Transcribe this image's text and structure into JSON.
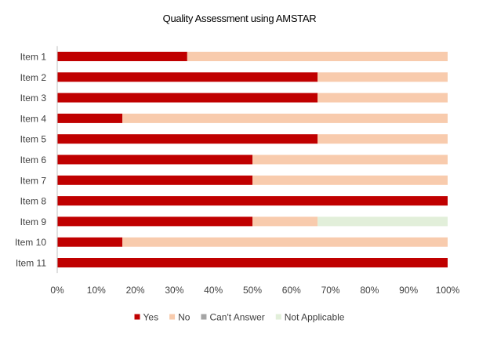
{
  "chart_data": {
    "type": "bar",
    "orientation": "horizontal",
    "stacked": "percent",
    "title": "Quality Assessment using AMSTAR",
    "categories": [
      "Item 1",
      "Item 2",
      "Item 3",
      "Item 4",
      "Item 5",
      "Item 6",
      "Item 7",
      "Item 8",
      "Item 9",
      "Item 10",
      "Item 11"
    ],
    "series": [
      {
        "name": "Yes",
        "color": "#c00000",
        "values": [
          33.3,
          66.7,
          66.7,
          16.7,
          66.7,
          50,
          50,
          100,
          50,
          16.7,
          100
        ]
      },
      {
        "name": "No",
        "color": "#f8cbad",
        "values": [
          66.7,
          33.3,
          33.3,
          83.3,
          33.3,
          50,
          50,
          0,
          16.7,
          83.3,
          0
        ]
      },
      {
        "name": "Can't Answer",
        "color": "#a5a5a5",
        "values": [
          0,
          0,
          0,
          0,
          0,
          0,
          0,
          0,
          0,
          0,
          0
        ]
      },
      {
        "name": "Not Applicable",
        "color": "#e2efda",
        "values": [
          0,
          0,
          0,
          0,
          0,
          0,
          0,
          0,
          33.3,
          0,
          0
        ]
      }
    ],
    "xlim": [
      0,
      100
    ],
    "xticks": [
      "0%",
      "10%",
      "20%",
      "30%",
      "40%",
      "50%",
      "60%",
      "70%",
      "80%",
      "90%",
      "100%"
    ],
    "legend_position": "bottom",
    "grid": false
  }
}
